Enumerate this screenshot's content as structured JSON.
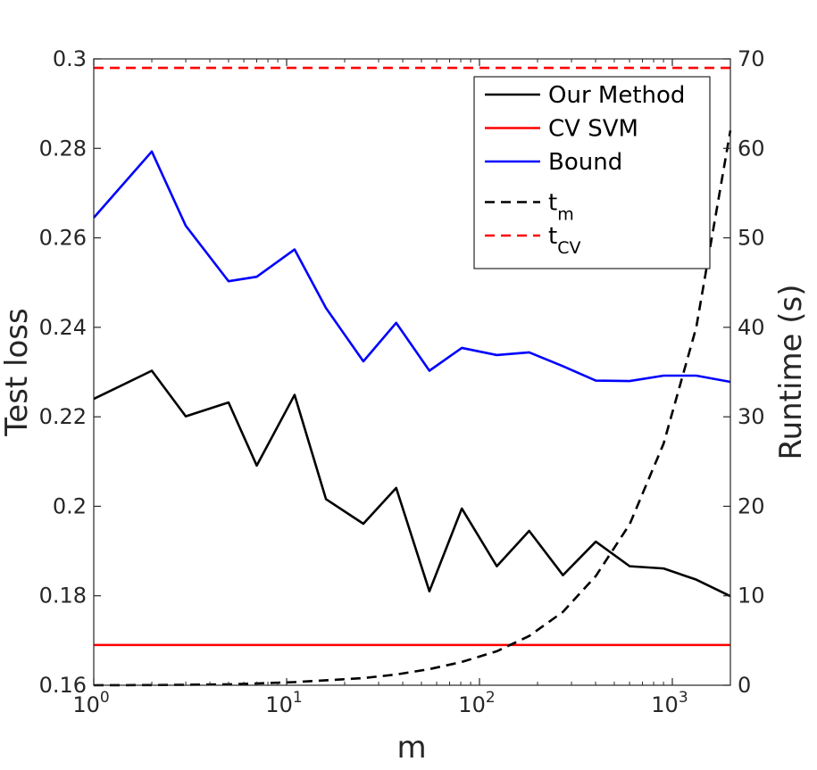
{
  "chart_data": {
    "type": "line",
    "xscale": "log",
    "xlim": [
      1,
      2000
    ],
    "ylim_left": [
      0.16,
      0.3
    ],
    "ylim_right": [
      0,
      70
    ],
    "xlabel": "m",
    "ylabel_left": "Test loss",
    "ylabel_right": "Runtime (s)",
    "xticks": [
      {
        "value": 1,
        "base": "10",
        "exp": "0"
      },
      {
        "value": 10,
        "base": "10",
        "exp": "1"
      },
      {
        "value": 100,
        "base": "10",
        "exp": "2"
      },
      {
        "value": 1000,
        "base": "10",
        "exp": "3"
      }
    ],
    "yticks_left": [
      {
        "value": 0.16,
        "label": "0.16"
      },
      {
        "value": 0.18,
        "label": "0.18"
      },
      {
        "value": 0.2,
        "label": "0.2"
      },
      {
        "value": 0.22,
        "label": "0.22"
      },
      {
        "value": 0.24,
        "label": "0.24"
      },
      {
        "value": 0.26,
        "label": "0.26"
      },
      {
        "value": 0.28,
        "label": "0.28"
      },
      {
        "value": 0.3,
        "label": "0.3"
      }
    ],
    "yticks_right": [
      {
        "value": 0,
        "label": "0"
      },
      {
        "value": 10,
        "label": "10"
      },
      {
        "value": 20,
        "label": "20"
      },
      {
        "value": 30,
        "label": "30"
      },
      {
        "value": 40,
        "label": "40"
      },
      {
        "value": 50,
        "label": "50"
      },
      {
        "value": 60,
        "label": "60"
      },
      {
        "value": 70,
        "label": "70"
      }
    ],
    "series": [
      {
        "name": "Our Method",
        "axis": "left",
        "color": "#000000",
        "dash": false,
        "x": [
          1,
          2,
          3,
          5,
          7,
          11,
          16,
          25,
          37,
          55,
          81,
          123,
          181,
          271,
          401,
          601,
          901,
          1331,
          2000
        ],
        "y": [
          0.224,
          0.2303,
          0.2201,
          0.2232,
          0.2091,
          0.2249,
          0.2016,
          0.1961,
          0.2041,
          0.181,
          0.1995,
          0.1866,
          0.1945,
          0.1846,
          0.1921,
          0.1866,
          0.1861,
          0.1836,
          0.1799
        ]
      },
      {
        "name": "CV SVM",
        "axis": "left",
        "color": "#ff0000",
        "dash": false,
        "x": [
          1,
          2000
        ],
        "y": [
          0.169,
          0.169
        ]
      },
      {
        "name": "Bound",
        "axis": "left",
        "color": "#0000ff",
        "dash": false,
        "x": [
          1,
          2,
          3,
          5,
          7,
          11,
          16,
          25,
          37,
          55,
          81,
          123,
          181,
          271,
          401,
          601,
          901,
          1331,
          2000
        ],
        "y": [
          0.2645,
          0.2793,
          0.2627,
          0.2503,
          0.2513,
          0.2574,
          0.2443,
          0.2324,
          0.241,
          0.2303,
          0.2354,
          0.2338,
          0.2344,
          0.2313,
          0.2281,
          0.228,
          0.2292,
          0.2292,
          0.2278
        ]
      },
      {
        "name": "t_m",
        "axis": "right",
        "color": "#000000",
        "dash": true,
        "x": [
          1,
          2,
          3,
          5,
          7,
          11,
          16,
          25,
          37,
          55,
          81,
          123,
          181,
          271,
          401,
          601,
          901,
          1331,
          2000
        ],
        "y": [
          0,
          0.02,
          0.05,
          0.1,
          0.2,
          0.35,
          0.55,
          0.8,
          1.2,
          1.8,
          2.6,
          3.8,
          5.5,
          8.2,
          12.2,
          18,
          27,
          40,
          62
        ]
      },
      {
        "name": "t_CV",
        "axis": "right",
        "color": "#ff0000",
        "dash": true,
        "x": [
          1,
          2000
        ],
        "y": [
          69,
          69
        ]
      }
    ],
    "legend": {
      "position": "top-right",
      "entries": [
        {
          "label": "Our Method",
          "sub": "",
          "color": "#000000",
          "dash": false
        },
        {
          "label": "CV SVM",
          "sub": "",
          "color": "#ff0000",
          "dash": false
        },
        {
          "label": "Bound",
          "sub": "",
          "color": "#0000ff",
          "dash": false
        },
        {
          "label": "t",
          "sub": "m",
          "color": "#000000",
          "dash": true
        },
        {
          "label": "t",
          "sub": "CV",
          "color": "#ff0000",
          "dash": true
        }
      ]
    }
  }
}
